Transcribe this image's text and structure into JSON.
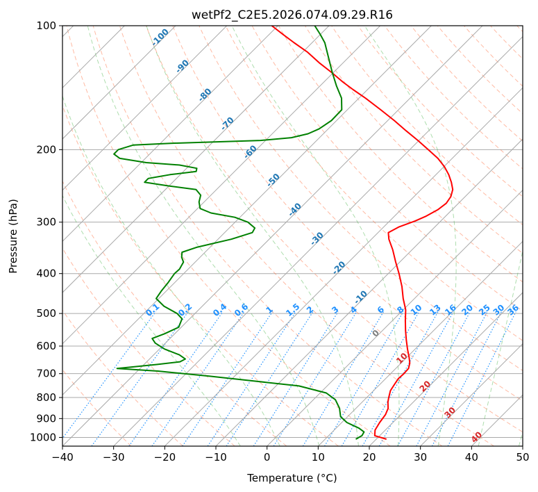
{
  "chart_data": {
    "type": "line",
    "title": "wetPf2_C2E5.2026.074.09.29.R16",
    "xlabel": "Temperature (°C)",
    "ylabel": "Pressure (hPa)",
    "xlim": [
      -40,
      50
    ],
    "ylim": [
      1050,
      100
    ],
    "yscale": "log",
    "x_ticks": [
      "−40",
      "−30",
      "−20",
      "−10",
      "0",
      "10",
      "20",
      "30",
      "40",
      "50"
    ],
    "x_tick_values": [
      -40,
      -30,
      -20,
      -10,
      0,
      10,
      20,
      30,
      40,
      50
    ],
    "y_ticks": [
      "1000",
      "900",
      "800",
      "700",
      "600",
      "500",
      "400",
      "300",
      "200",
      "100"
    ],
    "y_tick_values": [
      1000,
      900,
      800,
      700,
      600,
      500,
      400,
      300,
      200,
      100
    ],
    "grid": true,
    "skew": "45 degree skew-T",
    "colors": {
      "temperature": "#ff0000",
      "dewpoint": "#008000",
      "isotherm": "#808080",
      "dry_adiabat": "#ff6633",
      "moist_adiabat": "#33aa33",
      "mixing_ratio": "#1e90ff",
      "grid": "#a9a9a9"
    },
    "series": [
      {
        "key": "temperature",
        "points": [
          [
            1010,
            22.0
          ],
          [
            990,
            19.0
          ],
          [
            960,
            18.0
          ],
          [
            920,
            17.4
          ],
          [
            880,
            17.0
          ],
          [
            850,
            16.3
          ],
          [
            820,
            15.0
          ],
          [
            800,
            14.3
          ],
          [
            770,
            13.3
          ],
          [
            740,
            12.8
          ],
          [
            720,
            12.5
          ],
          [
            700,
            12.6
          ],
          [
            680,
            12.5
          ],
          [
            660,
            11.7
          ],
          [
            640,
            10.5
          ],
          [
            610,
            8.5
          ],
          [
            580,
            6.5
          ],
          [
            550,
            4.5
          ],
          [
            520,
            2.5
          ],
          [
            490,
            0.5
          ],
          [
            460,
            -2.2
          ],
          [
            430,
            -4.8
          ],
          [
            400,
            -7.9
          ],
          [
            375,
            -10.8
          ],
          [
            350,
            -13.8
          ],
          [
            330,
            -16.6
          ],
          [
            318,
            -18.0
          ],
          [
            308,
            -17.0
          ],
          [
            298,
            -15.0
          ],
          [
            290,
            -13.8
          ],
          [
            280,
            -12.8
          ],
          [
            270,
            -12.4
          ],
          [
            260,
            -12.8
          ],
          [
            250,
            -13.8
          ],
          [
            240,
            -15.5
          ],
          [
            230,
            -17.5
          ],
          [
            220,
            -19.9
          ],
          [
            210,
            -22.8
          ],
          [
            200,
            -26.4
          ],
          [
            190,
            -30.2
          ],
          [
            180,
            -34.4
          ],
          [
            170,
            -38.7
          ],
          [
            160,
            -43.5
          ],
          [
            150,
            -48.7
          ],
          [
            143,
            -52.8
          ],
          [
            137,
            -56.3
          ],
          [
            130,
            -60.3
          ],
          [
            123,
            -64.7
          ],
          [
            116,
            -69.0
          ],
          [
            110,
            -73.5
          ],
          [
            105,
            -77.3
          ],
          [
            100,
            -81.2
          ]
        ]
      },
      {
        "key": "dewpoint",
        "points": [
          [
            1010,
            16.0
          ],
          [
            990,
            16.5
          ],
          [
            970,
            16.2
          ],
          [
            950,
            14.5
          ],
          [
            920,
            11.0
          ],
          [
            890,
            8.6
          ],
          [
            850,
            6.8
          ],
          [
            810,
            4.3
          ],
          [
            780,
            1.2
          ],
          [
            750,
            -5.5
          ],
          [
            730,
            -15.0
          ],
          [
            710,
            -25.0
          ],
          [
            690,
            -36.0
          ],
          [
            680,
            -44.5
          ],
          [
            665,
            -37.5
          ],
          [
            655,
            -33.5
          ],
          [
            645,
            -33.0
          ],
          [
            630,
            -35.0
          ],
          [
            610,
            -39.0
          ],
          [
            590,
            -42.0
          ],
          [
            575,
            -43.5
          ],
          [
            560,
            -42.0
          ],
          [
            540,
            -40.5
          ],
          [
            515,
            -41.5
          ],
          [
            500,
            -43.5
          ],
          [
            480,
            -47.5
          ],
          [
            460,
            -50.5
          ],
          [
            440,
            -51.0
          ],
          [
            420,
            -51.3
          ],
          [
            400,
            -51.8
          ],
          [
            390,
            -51.7
          ],
          [
            375,
            -52.3
          ],
          [
            365,
            -53.6
          ],
          [
            355,
            -54.5
          ],
          [
            345,
            -52.5
          ],
          [
            330,
            -47.4
          ],
          [
            318,
            -44.6
          ],
          [
            310,
            -45.0
          ],
          [
            300,
            -47.5
          ],
          [
            292,
            -51.0
          ],
          [
            285,
            -56.5
          ],
          [
            278,
            -59.5
          ],
          [
            268,
            -61.0
          ],
          [
            258,
            -62.0
          ],
          [
            250,
            -64.0
          ],
          [
            245,
            -70.0
          ],
          [
            240,
            -75.5
          ],
          [
            235,
            -75.5
          ],
          [
            230,
            -72.0
          ],
          [
            226,
            -67.5
          ],
          [
            222,
            -68.0
          ],
          [
            218,
            -72.0
          ],
          [
            215,
            -79.0
          ],
          [
            210,
            -85.0
          ],
          [
            205,
            -87.0
          ],
          [
            200,
            -87.0
          ],
          [
            195,
            -85.0
          ],
          [
            193,
            -78.0
          ],
          [
            190,
            -61.0
          ],
          [
            187,
            -55.5
          ],
          [
            183,
            -53.0
          ],
          [
            178,
            -51.8
          ],
          [
            170,
            -51.0
          ],
          [
            160,
            -51.1
          ],
          [
            150,
            -53.4
          ],
          [
            140,
            -56.8
          ],
          [
            130,
            -60.2
          ],
          [
            120,
            -63.7
          ],
          [
            110,
            -67.5
          ],
          [
            105,
            -70.0
          ],
          [
            100,
            -72.8
          ]
        ]
      }
    ],
    "dry_adiabat_labels": [
      "-100",
      "-90",
      "-80",
      "-70",
      "-60",
      "-50",
      "-40",
      "-30",
      "-20",
      "-10",
      "0",
      "10",
      "20",
      "30",
      "40"
    ],
    "mixing_ratio_labels": [
      "0.1",
      "0.2",
      "0.4",
      "0.6",
      "1",
      "1.5",
      "2",
      "3",
      "4",
      "6",
      "8",
      "10",
      "13",
      "16",
      "20",
      "25",
      "30",
      "36"
    ]
  }
}
